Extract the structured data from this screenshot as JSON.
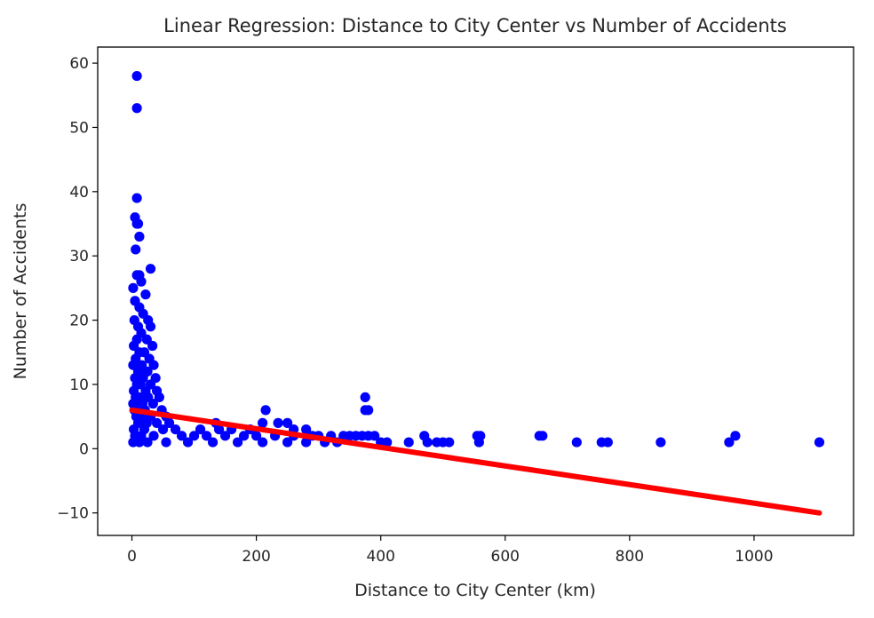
{
  "chart_data": {
    "type": "scatter",
    "title": "Linear Regression: Distance to City Center vs Number of Accidents",
    "xlabel": "Distance to City Center (km)",
    "ylabel": "Number of Accidents",
    "xlim": [
      -55,
      1160
    ],
    "ylim": [
      -13.5,
      62.5
    ],
    "xticks": [
      0,
      200,
      400,
      600,
      800,
      1000
    ],
    "yticks": [
      -10,
      0,
      10,
      20,
      30,
      40,
      50,
      60
    ],
    "xtick_labels": [
      "0",
      "200",
      "400",
      "600",
      "800",
      "1000"
    ],
    "ytick_labels": [
      "−10",
      "0",
      "10",
      "20",
      "30",
      "40",
      "50",
      "60"
    ],
    "grid": false,
    "series": [
      {
        "kind": "scatter",
        "color": "#0000ff",
        "points": [
          [
            8,
            58
          ],
          [
            8,
            53
          ],
          [
            8,
            39
          ],
          [
            5,
            36
          ],
          [
            8,
            35
          ],
          [
            10,
            35
          ],
          [
            12,
            33
          ],
          [
            6,
            31
          ],
          [
            30,
            28
          ],
          [
            12,
            27
          ],
          [
            8,
            27
          ],
          [
            15,
            26
          ],
          [
            2,
            25
          ],
          [
            22,
            24
          ],
          [
            5,
            23
          ],
          [
            12,
            22
          ],
          [
            18,
            21
          ],
          [
            26,
            20
          ],
          [
            4,
            20
          ],
          [
            10,
            19
          ],
          [
            30,
            19
          ],
          [
            15,
            18
          ],
          [
            24,
            17
          ],
          [
            8,
            17
          ],
          [
            3,
            16
          ],
          [
            33,
            16
          ],
          [
            20,
            15
          ],
          [
            12,
            15
          ],
          [
            28,
            14
          ],
          [
            6,
            14
          ],
          [
            16,
            13
          ],
          [
            35,
            13
          ],
          [
            2,
            13
          ],
          [
            10,
            12
          ],
          [
            25,
            12
          ],
          [
            38,
            11
          ],
          [
            5,
            11
          ],
          [
            18,
            11
          ],
          [
            30,
            10
          ],
          [
            8,
            10
          ],
          [
            14,
            10
          ],
          [
            22,
            9
          ],
          [
            40,
            9
          ],
          [
            3,
            9
          ],
          [
            11,
            8
          ],
          [
            44,
            8
          ],
          [
            26,
            8
          ],
          [
            6,
            8
          ],
          [
            17,
            7
          ],
          [
            34,
            7
          ],
          [
            2,
            7
          ],
          [
            9,
            7
          ],
          [
            48,
            6
          ],
          [
            21,
            6
          ],
          [
            13,
            6
          ],
          [
            4,
            6
          ],
          [
            55,
            5
          ],
          [
            30,
            5
          ],
          [
            7,
            5
          ],
          [
            16,
            5
          ],
          [
            60,
            4
          ],
          [
            40,
            4
          ],
          [
            24,
            4
          ],
          [
            10,
            4
          ],
          [
            3,
            3
          ],
          [
            70,
            3
          ],
          [
            50,
            3
          ],
          [
            20,
            3
          ],
          [
            80,
            2
          ],
          [
            100,
            2
          ],
          [
            120,
            2
          ],
          [
            150,
            2
          ],
          [
            180,
            2
          ],
          [
            200,
            2
          ],
          [
            230,
            2
          ],
          [
            260,
            2
          ],
          [
            290,
            2
          ],
          [
            15,
            2
          ],
          [
            5,
            2
          ],
          [
            35,
            2
          ],
          [
            90,
            1
          ],
          [
            130,
            1
          ],
          [
            170,
            1
          ],
          [
            210,
            1
          ],
          [
            250,
            1
          ],
          [
            280,
            1
          ],
          [
            310,
            1
          ],
          [
            330,
            1
          ],
          [
            25,
            1
          ],
          [
            55,
            1
          ],
          [
            2,
            1
          ],
          [
            12,
            1
          ],
          [
            135,
            4
          ],
          [
            110,
            3
          ],
          [
            140,
            3
          ],
          [
            160,
            3
          ],
          [
            190,
            3
          ],
          [
            210,
            4
          ],
          [
            215,
            6
          ],
          [
            235,
            4
          ],
          [
            250,
            4
          ],
          [
            260,
            3
          ],
          [
            280,
            3
          ],
          [
            300,
            2
          ],
          [
            320,
            2
          ],
          [
            340,
            2
          ],
          [
            350,
            2
          ],
          [
            360,
            2
          ],
          [
            370,
            2
          ],
          [
            380,
            2
          ],
          [
            390,
            2
          ],
          [
            375,
            8
          ],
          [
            375,
            6
          ],
          [
            380,
            6
          ],
          [
            400,
            1
          ],
          [
            410,
            1
          ],
          [
            445,
            1
          ],
          [
            470,
            2
          ],
          [
            475,
            1
          ],
          [
            490,
            1
          ],
          [
            500,
            1
          ],
          [
            510,
            1
          ],
          [
            555,
            2
          ],
          [
            560,
            2
          ],
          [
            558,
            1
          ],
          [
            655,
            2
          ],
          [
            660,
            2
          ],
          [
            715,
            1
          ],
          [
            755,
            1
          ],
          [
            765,
            1
          ],
          [
            850,
            1
          ],
          [
            960,
            1
          ],
          [
            970,
            2
          ],
          [
            1105,
            1
          ]
        ]
      },
      {
        "kind": "line",
        "color": "#ff0000",
        "points": [
          [
            0,
            6
          ],
          [
            1105,
            -10
          ]
        ]
      }
    ]
  }
}
